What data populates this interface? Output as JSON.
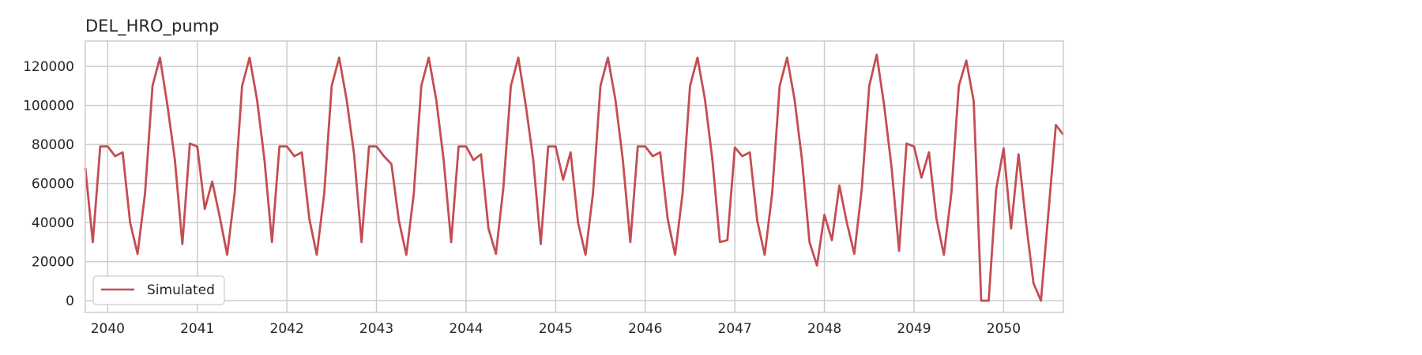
{
  "chart_data": {
    "type": "line",
    "title": "DEL_HRO_pump",
    "xlabel": "",
    "ylabel": "",
    "x_tick_labels": [
      "2040",
      "2041",
      "2042",
      "2043",
      "2044",
      "2045",
      "2046",
      "2047",
      "2048",
      "2049",
      "2050"
    ],
    "y_tick_labels": [
      "0",
      "20000",
      "40000",
      "60000",
      "80000",
      "100000",
      "120000"
    ],
    "y_ticks": [
      0,
      20000,
      40000,
      60000,
      80000,
      100000,
      120000
    ],
    "xlim": [
      "2039-10",
      "2050-09"
    ],
    "ylim": [
      -6000,
      133000
    ],
    "grid": true,
    "legend_position": "lower-left",
    "colors": {
      "series": "#c44e52",
      "grid": "#cccccc",
      "frame": "#cccccc"
    },
    "series": [
      {
        "name": "Simulated",
        "start": "2039-10",
        "values": [
          68000,
          30000,
          79000,
          79000,
          74000,
          76000,
          40000,
          24000,
          55000,
          110000,
          124500,
          100000,
          72000,
          29000,
          80500,
          79000,
          47000,
          61000,
          43000,
          23500,
          55000,
          110000,
          124500,
          103000,
          72000,
          30000,
          79000,
          79000,
          74000,
          76000,
          42000,
          23500,
          55000,
          110000,
          124500,
          103000,
          75000,
          30000,
          79000,
          79000,
          74000,
          70000,
          41000,
          23500,
          55000,
          110000,
          124500,
          103000,
          72000,
          30000,
          79000,
          79000,
          72000,
          75000,
          37000,
          24000,
          58000,
          110000,
          124500,
          100000,
          72000,
          29000,
          79000,
          79000,
          62000,
          76000,
          40000,
          23500,
          55000,
          110000,
          124500,
          103000,
          72000,
          30000,
          79000,
          79000,
          74000,
          76000,
          42000,
          23500,
          55000,
          110000,
          124500,
          103000,
          72000,
          30000,
          31000,
          78500,
          74000,
          76000,
          41000,
          23500,
          55000,
          110000,
          124500,
          103000,
          72000,
          30000,
          18000,
          44000,
          31000,
          59000,
          40000,
          24000,
          57000,
          110000,
          126000,
          100000,
          68000,
          25500,
          80500,
          79000,
          63000,
          76000,
          42000,
          23500,
          55000,
          110000,
          123000,
          102000,
          0,
          0,
          57000,
          78000,
          37000,
          75000,
          40000,
          9000,
          0,
          45000,
          90000,
          85000
        ]
      }
    ]
  }
}
